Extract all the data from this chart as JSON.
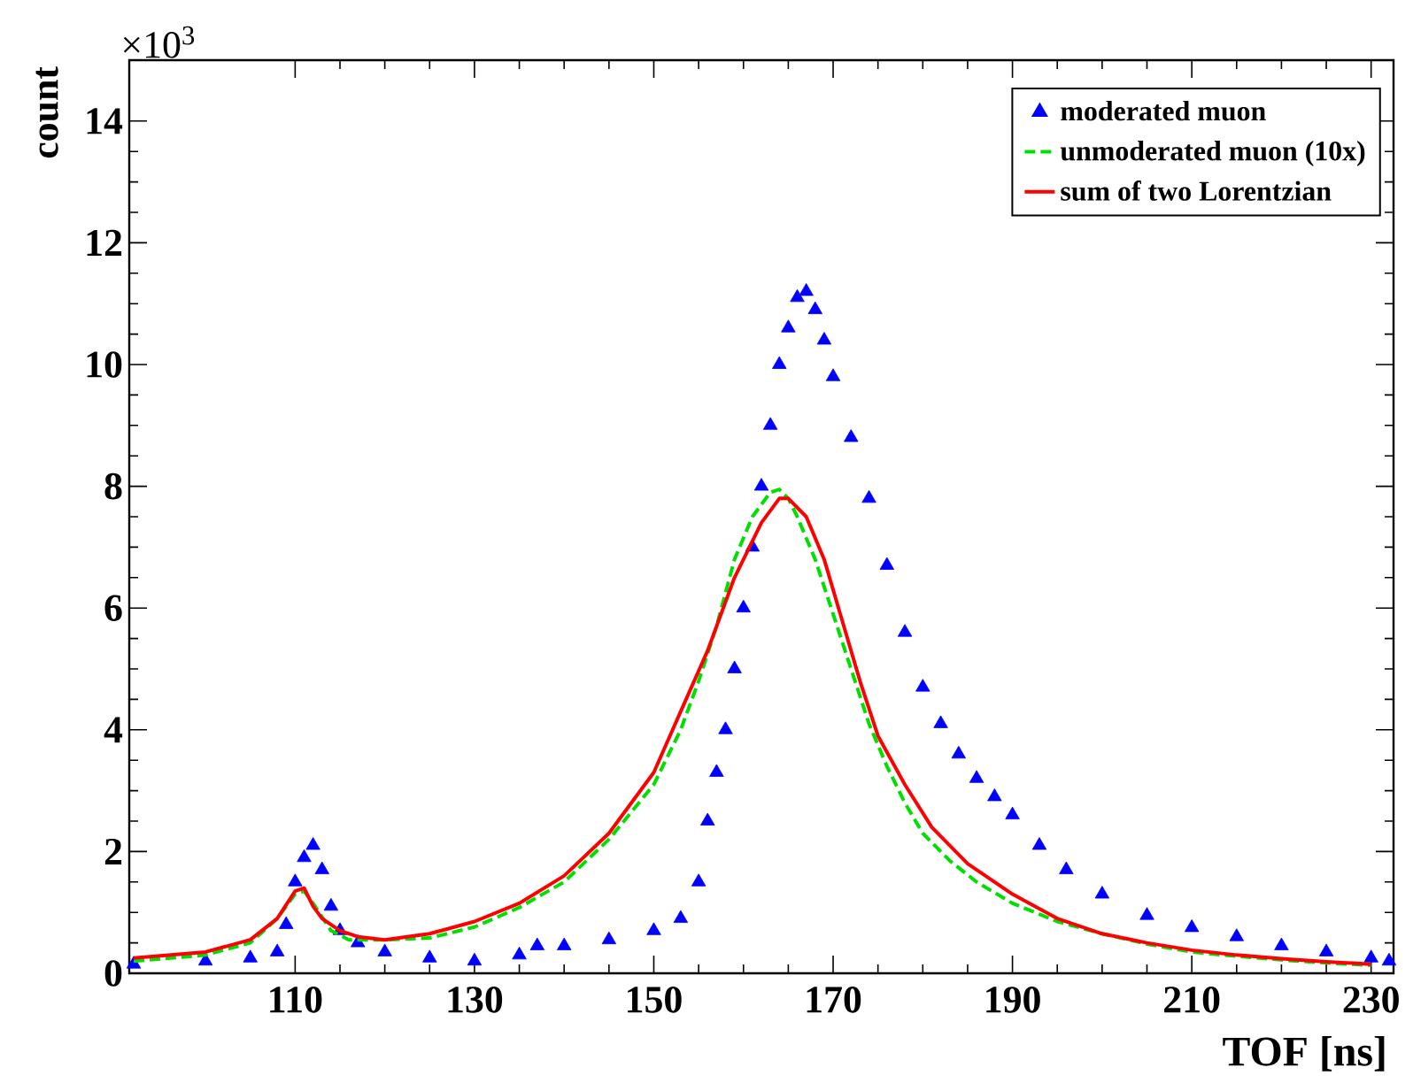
{
  "chart_data": {
    "type": "line",
    "xlabel": "TOF [ns]",
    "ylabel": "count",
    "annotations": [
      "×10$^{3}$"
    ],
    "xlim": [
      91.5,
      232.5
    ],
    "ylim": [
      0,
      15
    ],
    "xticks": [
      110,
      130,
      150,
      170,
      190,
      210,
      230
    ],
    "yticks": [
      0,
      2,
      4,
      6,
      8,
      10,
      12,
      14
    ],
    "grid": false,
    "legend": "top right",
    "series": [
      {
        "name": "moderated muon",
        "type": "scatter",
        "marker": "triangle",
        "color": "#0000ff",
        "x": [
          92,
          100,
          105,
          108,
          109,
          110,
          111,
          112,
          113,
          114,
          115,
          117,
          120,
          125,
          130,
          135,
          137,
          140,
          145,
          150,
          153,
          155,
          156,
          157,
          158,
          159,
          160,
          161,
          162,
          163,
          164,
          165,
          166,
          167,
          168,
          169,
          170,
          172,
          174,
          176,
          178,
          180,
          182,
          184,
          186,
          188,
          190,
          193,
          196,
          200,
          205,
          210,
          215,
          220,
          225,
          230,
          232
        ],
        "values": [
          0.15,
          0.2,
          0.25,
          0.35,
          0.8,
          1.5,
          1.9,
          2.1,
          1.7,
          1.1,
          0.7,
          0.5,
          0.35,
          0.25,
          0.2,
          0.3,
          0.45,
          0.45,
          0.55,
          0.7,
          0.9,
          1.5,
          2.5,
          3.3,
          4.0,
          5.0,
          6.0,
          7.0,
          8.0,
          9.0,
          10.0,
          10.6,
          11.1,
          11.2,
          10.9,
          10.4,
          9.8,
          8.8,
          7.8,
          6.7,
          5.6,
          4.7,
          4.1,
          3.6,
          3.2,
          2.9,
          2.6,
          2.1,
          1.7,
          1.3,
          0.95,
          0.75,
          0.6,
          0.45,
          0.35,
          0.25,
          0.2
        ]
      },
      {
        "name": "unmoderated muon (10x)",
        "marker": "none",
        "line_style": "dashed",
        "color": "#00e000",
        "x": [
          92,
          100,
          105,
          108,
          110,
          111,
          112,
          114,
          116,
          120,
          125,
          130,
          135,
          140,
          145,
          150,
          153,
          155,
          157,
          159,
          161,
          163,
          164,
          165,
          166,
          168,
          170,
          172,
          174,
          176,
          178,
          180,
          183,
          186,
          190,
          195,
          200,
          205,
          210,
          215,
          220,
          225,
          230
        ],
        "values": [
          0.2,
          0.3,
          0.5,
          0.9,
          1.3,
          1.35,
          1.15,
          0.7,
          0.55,
          0.55,
          0.58,
          0.76,
          1.08,
          1.5,
          2.2,
          3.1,
          4.0,
          4.8,
          5.7,
          6.8,
          7.5,
          7.9,
          7.95,
          7.8,
          7.5,
          6.8,
          5.9,
          5.0,
          4.1,
          3.4,
          2.8,
          2.3,
          1.85,
          1.5,
          1.15,
          0.85,
          0.65,
          0.48,
          0.35,
          0.28,
          0.22,
          0.17,
          0.13
        ]
      },
      {
        "name": "sum of two Lorentzian",
        "marker": "none",
        "line_style": "solid",
        "color": "#ff0000",
        "x": [
          92,
          100,
          105,
          108,
          110,
          111,
          112,
          113,
          115,
          117,
          120,
          125,
          130,
          135,
          140,
          145,
          150,
          153,
          156,
          159,
          162,
          164,
          165,
          167,
          169,
          171,
          173,
          175,
          178,
          181,
          185,
          190,
          195,
          200,
          205,
          210,
          215,
          220,
          225,
          230
        ],
        "values": [
          0.25,
          0.35,
          0.55,
          0.9,
          1.35,
          1.4,
          1.1,
          0.9,
          0.7,
          0.6,
          0.55,
          0.65,
          0.85,
          1.15,
          1.6,
          2.3,
          3.3,
          4.3,
          5.3,
          6.5,
          7.4,
          7.8,
          7.8,
          7.5,
          6.8,
          5.8,
          4.8,
          3.9,
          3.1,
          2.4,
          1.8,
          1.3,
          0.9,
          0.65,
          0.5,
          0.38,
          0.3,
          0.24,
          0.19,
          0.15
        ]
      }
    ]
  }
}
